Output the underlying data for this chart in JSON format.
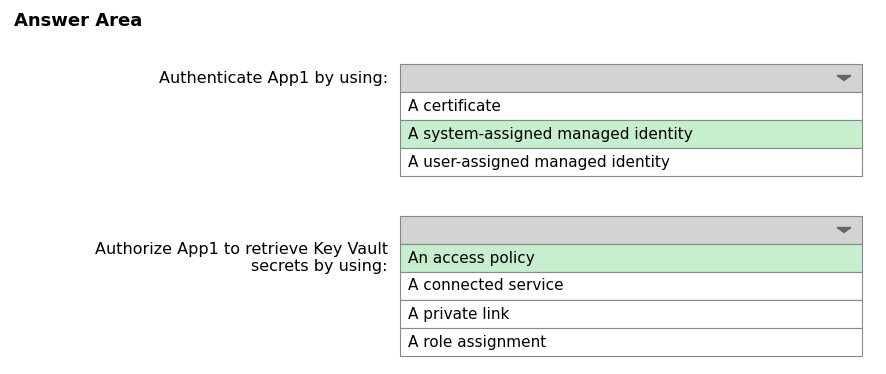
{
  "title": "Answer Area",
  "title_fontsize": 13,
  "background_color": "#ffffff",
  "dropdown_bg": "#d3d3d3",
  "highlight_bg": "#c6efce",
  "white_bg": "#ffffff",
  "border_color": "#888888",
  "text_color": "#000000",
  "arrow_color": "#666666",
  "section1_label": "Authenticate App1 by using:",
  "section2_label": "Authorize App1 to retrieve Key Vault\nsecrets by using:",
  "section1_items": [
    "A certificate",
    "A system-assigned managed identity",
    "A user-assigned managed identity"
  ],
  "section1_highlighted": 1,
  "section2_items": [
    "An access policy",
    "A connected service",
    "A private link",
    "A role assignment"
  ],
  "section2_highlighted": 0,
  "font_size": 11,
  "label_font_size": 11.5
}
